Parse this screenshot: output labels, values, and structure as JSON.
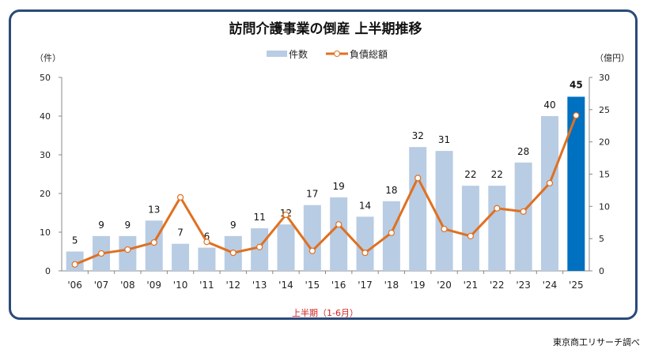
{
  "chart_data": {
    "type": "bar+line",
    "title": "訪問介護事業の倒産 上半期推移",
    "xlabel": "上半期（1-6月）",
    "ylabel_left": "（件）",
    "ylabel_right": "（億円）",
    "categories": [
      "'06",
      "'07",
      "'08",
      "'09",
      "'10",
      "'11",
      "'12",
      "'13",
      "'14",
      "'15",
      "'16",
      "'17",
      "'18",
      "'19",
      "'20",
      "'21",
      "'22",
      "'23",
      "'24",
      "'25"
    ],
    "series": [
      {
        "name": "件数",
        "type": "bar",
        "axis": "left",
        "values": [
          5,
          9,
          9,
          13,
          7,
          6,
          9,
          11,
          12,
          17,
          19,
          14,
          18,
          32,
          31,
          22,
          22,
          28,
          40,
          45
        ],
        "color": "#b8cce4",
        "highlight_color": "#0070c0"
      },
      {
        "name": "負債総額",
        "type": "line",
        "axis": "right",
        "values": [
          1.0,
          2.7,
          3.3,
          4.4,
          11.4,
          4.5,
          2.8,
          3.7,
          8.7,
          3.1,
          7.2,
          2.8,
          5.9,
          14.4,
          6.5,
          5.4,
          9.7,
          9.2,
          13.6,
          24.1
        ],
        "color": "#e07020"
      }
    ],
    "ylim_left": [
      0,
      50
    ],
    "yticks_left": [
      0,
      10,
      20,
      30,
      40,
      50
    ],
    "ylim_right": [
      0,
      30
    ],
    "yticks_right": [
      0,
      5,
      10,
      15,
      20,
      25,
      30
    ],
    "legend": "top-center",
    "grid": false
  },
  "source": "東京商工リサーチ調べ"
}
